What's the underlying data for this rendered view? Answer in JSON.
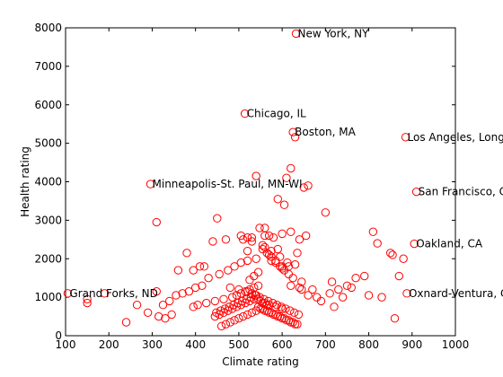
{
  "chart_data": {
    "type": "scatter",
    "xlabel": "Climate rating",
    "ylabel": "Health rating",
    "xlim": [
      100,
      1000
    ],
    "ylim": [
      0,
      8000
    ],
    "xticks": [
      100,
      200,
      300,
      400,
      500,
      600,
      700,
      800,
      900,
      1000
    ],
    "yticks": [
      0,
      1000,
      2000,
      3000,
      4000,
      5000,
      6000,
      7000,
      8000
    ],
    "marker": "circle-open",
    "color": "#ff0000",
    "grid": false,
    "annotations": [
      {
        "text": "New York, NY",
        "x": 632,
        "y": 7850
      },
      {
        "text": "Chicago, IL",
        "x": 514,
        "y": 5770
      },
      {
        "text": "Boston, MA",
        "x": 625,
        "y": 5290
      },
      {
        "text": "Los Angeles, Long",
        "x": 885,
        "y": 5160
      },
      {
        "text": "Minneapolis-St. Paul, MN-WI",
        "x": 296,
        "y": 3940
      },
      {
        "text": "San Francisco, C",
        "x": 910,
        "y": 3740
      },
      {
        "text": "Oakland, CA",
        "x": 905,
        "y": 2390
      },
      {
        "text": "Grand Forks, ND",
        "x": 105,
        "y": 1100
      },
      {
        "text": "Oxnard-Ventura, C",
        "x": 888,
        "y": 1100
      }
    ],
    "x": [
      632,
      514,
      625,
      630,
      885,
      296,
      910,
      905,
      105,
      888,
      540,
      548,
      590,
      605,
      610,
      620,
      650,
      660,
      570,
      580,
      310,
      450,
      440,
      470,
      530,
      560,
      520,
      600,
      640,
      655,
      380,
      395,
      410,
      420,
      360,
      700,
      715,
      810,
      855,
      880,
      560,
      575,
      595,
      612,
      635,
      520,
      505,
      490,
      475,
      455,
      430,
      415,
      400,
      385,
      370,
      355,
      340,
      325,
      310,
      150,
      150,
      190,
      240,
      265,
      290,
      315,
      330,
      345,
      480,
      500,
      520,
      530,
      540,
      545,
      550,
      555,
      565,
      585,
      600,
      620,
      640,
      660,
      680,
      710,
      730,
      750,
      770,
      800,
      830,
      860,
      870,
      850,
      820,
      790,
      760,
      740,
      720,
      690,
      670,
      645,
      625,
      615,
      605,
      595,
      585,
      575,
      565,
      555,
      545,
      535,
      525,
      515,
      505,
      495,
      485,
      465,
      445,
      425,
      405,
      395,
      550,
      560,
      570,
      580,
      590,
      600,
      610,
      620,
      630,
      540,
      530,
      520,
      510,
      500,
      490,
      480,
      470,
      460,
      560,
      570,
      545,
      555,
      565,
      575,
      585,
      595,
      605,
      615,
      625,
      635,
      535,
      525,
      515,
      505,
      495,
      485,
      475,
      465,
      455,
      445,
      548,
      558,
      568,
      578,
      588,
      598,
      608,
      618,
      628,
      638,
      538,
      528,
      518,
      508,
      498,
      488,
      478,
      468,
      458,
      448,
      560,
      575,
      590,
      520,
      505,
      540,
      530,
      600,
      620,
      510,
      615,
      630,
      645,
      600,
      585,
      570,
      555,
      545,
      535,
      525
    ],
    "y": [
      7850,
      5770,
      5290,
      5160,
      5160,
      3940,
      3740,
      2390,
      1100,
      1100,
      4150,
      2800,
      3550,
      3400,
      4100,
      4350,
      3850,
      3900,
      2600,
      2550,
      2950,
      3050,
      2450,
      2500,
      2550,
      2600,
      2200,
      2650,
      2500,
      2600,
      2150,
      1700,
      1800,
      1800,
      1700,
      3200,
      1400,
      2700,
      2100,
      2000,
      2300,
      2200,
      2050,
      1900,
      2150,
      1950,
      1900,
      1800,
      1700,
      1600,
      1500,
      1300,
      1250,
      1150,
      1100,
      1050,
      900,
      800,
      1150,
      950,
      850,
      1100,
      350,
      800,
      600,
      500,
      450,
      550,
      1250,
      1200,
      1150,
      1100,
      1050,
      950,
      900,
      850,
      800,
      750,
      700,
      1300,
      1250,
      1050,
      1000,
      1100,
      1200,
      1300,
      1500,
      1050,
      1000,
      450,
      1550,
      2150,
      2400,
      1550,
      1250,
      1000,
      750,
      900,
      1200,
      1400,
      1500,
      1600,
      1700,
      1800,
      1950,
      2050,
      2150,
      2250,
      1300,
      1250,
      1200,
      1150,
      1100,
      1050,
      1000,
      950,
      900,
      850,
      800,
      750,
      700,
      650,
      600,
      550,
      500,
      450,
      400,
      350,
      300,
      650,
      600,
      550,
      500,
      450,
      400,
      350,
      300,
      250,
      850,
      800,
      750,
      700,
      650,
      600,
      550,
      500,
      450,
      400,
      350,
      300,
      950,
      900,
      850,
      800,
      750,
      700,
      650,
      600,
      550,
      500,
      1000,
      950,
      900,
      850,
      800,
      750,
      700,
      650,
      600,
      550,
      1050,
      1000,
      950,
      900,
      850,
      800,
      750,
      700,
      650,
      600,
      2800,
      1950,
      2250,
      2550,
      2600,
      2000,
      2450,
      1800,
      2700,
      2500,
      1800,
      1850,
      1200,
      1750,
      1900,
      2100,
      2350,
      1650,
      1550,
      1450
    ]
  }
}
